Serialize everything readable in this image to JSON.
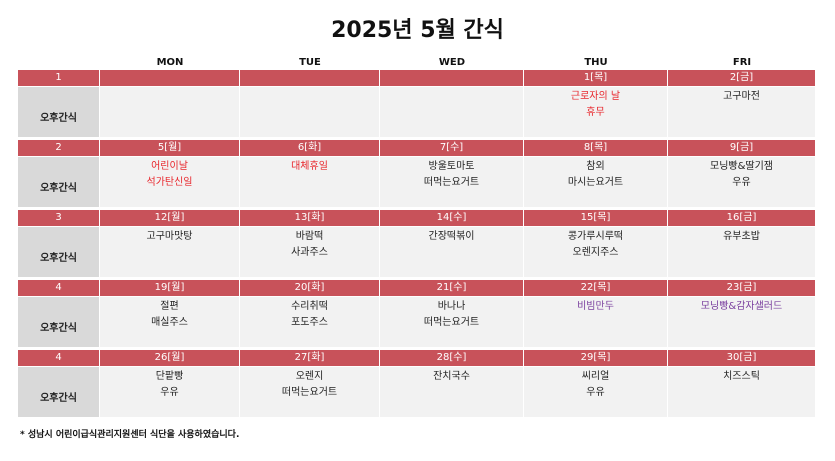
{
  "title": "2025년 5월 간식",
  "days": [
    "MON",
    "TUE",
    "WED",
    "THU",
    "FRI"
  ],
  "row_label": "오후간식",
  "colors": {
    "header_bar": "#c8525a",
    "label_bg": "#d9d9d9",
    "cell_bg": "#f2f2f2",
    "holiday": "#e8262c",
    "special": "#7a3f9e"
  },
  "weeks": [
    {
      "week": "1",
      "dates": [
        "",
        "",
        "",
        "1[목]",
        "2[금]"
      ],
      "menus": [
        {
          "items": []
        },
        {
          "items": []
        },
        {
          "items": []
        },
        {
          "items": [
            "근로자의 날",
            "휴무"
          ],
          "color": "red"
        },
        {
          "items": [
            "고구마전"
          ]
        }
      ]
    },
    {
      "week": "2",
      "dates": [
        "5[월]",
        "6[화]",
        "7[수]",
        "8[목]",
        "9[금]"
      ],
      "menus": [
        {
          "items": [
            "어린이날",
            "석가탄신일"
          ],
          "color": "red"
        },
        {
          "items": [
            "대체휴일"
          ],
          "color": "red"
        },
        {
          "items": [
            "방울토마토",
            "떠먹는요거트"
          ]
        },
        {
          "items": [
            "참외",
            "마시는요거트"
          ]
        },
        {
          "items": [
            "모닝빵&딸기잼",
            "우유"
          ]
        }
      ]
    },
    {
      "week": "3",
      "dates": [
        "12[월]",
        "13[화]",
        "14[수]",
        "15[목]",
        "16[금]"
      ],
      "menus": [
        {
          "items": [
            "고구마맛탕"
          ]
        },
        {
          "items": [
            "바람떡",
            "사과주스"
          ]
        },
        {
          "items": [
            "간장떡볶이"
          ]
        },
        {
          "items": [
            "콩가루시루떡",
            "오렌지주스"
          ]
        },
        {
          "items": [
            "유부초밥"
          ]
        }
      ]
    },
    {
      "week": "4",
      "dates": [
        "19[월]",
        "20[화]",
        "21[수]",
        "22[목]",
        "23[금]"
      ],
      "menus": [
        {
          "items": [
            "절편",
            "매실주스"
          ]
        },
        {
          "items": [
            "수리취떡",
            "포도주스"
          ]
        },
        {
          "items": [
            "바나나",
            "떠먹는요거트"
          ]
        },
        {
          "items": [
            "비빔만두"
          ],
          "color": "purple"
        },
        {
          "items": [
            "모닝빵&감자샐러드"
          ],
          "color": "purple"
        }
      ]
    },
    {
      "week": "4",
      "dates": [
        "26[월]",
        "27[화]",
        "28[수]",
        "29[목]",
        "30[금]"
      ],
      "menus": [
        {
          "items": [
            "단팥빵",
            "우유"
          ]
        },
        {
          "items": [
            "오렌지",
            "떠먹는요거트"
          ]
        },
        {
          "items": [
            "잔치국수"
          ]
        },
        {
          "items": [
            "씨리얼",
            "우유"
          ]
        },
        {
          "items": [
            "치즈스틱"
          ]
        }
      ]
    }
  ],
  "footnote": "* 성남시 어린이급식관리지원센터 식단을 사용하였습니다."
}
